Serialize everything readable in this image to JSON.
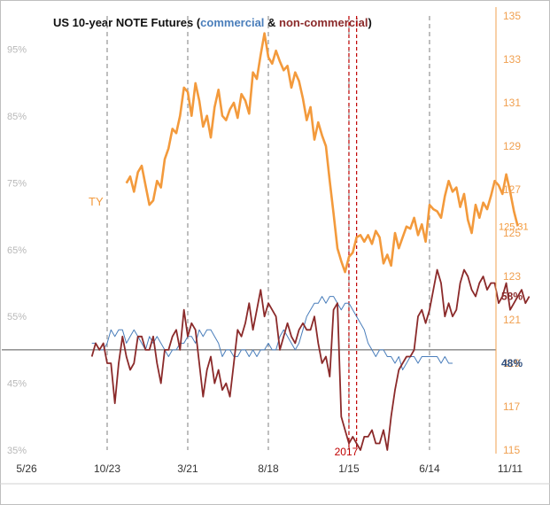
{
  "colors": {
    "ty": "#f39a3c",
    "commercial": "#4a7ebb",
    "noncommercial": "#8b2a2a",
    "year_marker": "#c00000",
    "grid_dash": "#7f7f7f",
    "baseline": "#555555",
    "left_axis": "#b8b8b8",
    "right_axis": "#f0a050",
    "frame": "#bfbfbf"
  },
  "chart_data": {
    "type": "line",
    "title": {
      "prefix": "US 10-year NOTE Futures (",
      "commercial": "commercial",
      "amp": " & ",
      "noncommercial": "non-commercial",
      "suffix": ")"
    },
    "x_ticks": [
      "5/26",
      "10/23",
      "3/21",
      "8/18",
      "1/15",
      "6/14",
      "11/11"
    ],
    "x_tick_index": [
      0,
      21,
      42,
      63,
      84,
      105,
      126
    ],
    "vline_index": [
      21,
      42,
      63,
      84,
      105
    ],
    "year_marker": {
      "label": "2017",
      "index": [
        84,
        86
      ]
    },
    "left_axis": {
      "ticks": [
        "95%",
        "85%",
        "75%",
        "65%",
        "55%",
        "45%",
        "35%"
      ],
      "values": [
        95,
        85,
        75,
        65,
        55,
        45,
        35
      ],
      "range": [
        35,
        100
      ]
    },
    "right_axis": {
      "ticks": [
        "135",
        "133",
        "131",
        "129",
        "127",
        "125",
        "123",
        "121",
        "119",
        "117",
        "115"
      ],
      "values": [
        135,
        133,
        131,
        129,
        127,
        125,
        123,
        121,
        119,
        117,
        115
      ],
      "range": [
        115,
        135
      ]
    },
    "baseline_pct": 50,
    "series": [
      {
        "name": "TY",
        "axis": "right",
        "label_value": "125.31",
        "x_start": 26,
        "values": [
          127.3,
          127.6,
          126.9,
          127.8,
          128.1,
          127.2,
          126.3,
          126.5,
          127.4,
          127.1,
          128.4,
          128.9,
          129.8,
          129.6,
          130.4,
          131.7,
          131.5,
          130.4,
          131.9,
          131.1,
          129.9,
          130.4,
          129.4,
          130.8,
          131.6,
          130.4,
          130.2,
          130.7,
          131.0,
          130.3,
          131.4,
          131.1,
          130.5,
          132.4,
          132.1,
          133.2,
          134.2,
          133.1,
          132.8,
          133.4,
          132.9,
          132.5,
          132.7,
          131.7,
          132.4,
          132.0,
          131.2,
          130.2,
          130.8,
          129.3,
          130.1,
          129.5,
          129.0,
          127.4,
          125.9,
          124.3,
          123.7,
          123.2,
          123.9,
          124.1,
          124.8,
          124.9,
          124.6,
          124.9,
          124.5,
          125.1,
          124.8,
          123.6,
          124.0,
          123.5,
          125.0,
          124.3,
          124.8,
          125.3,
          125.2,
          125.7,
          124.9,
          125.4,
          124.6,
          126.3,
          126.1,
          126.0,
          125.7,
          126.7,
          127.4,
          126.9,
          127.1,
          126.2,
          126.8,
          125.6,
          125.0,
          126.3,
          125.7,
          126.4,
          126.1,
          126.7,
          127.4,
          127.2,
          126.8,
          127.7,
          126.9,
          126.0,
          125.31
        ]
      },
      {
        "name": "commercial",
        "axis": "left",
        "label_value": "48%",
        "x_start": 17,
        "values": [
          51,
          51,
          50,
          50,
          51,
          53,
          52,
          53,
          53,
          51,
          52,
          53,
          52,
          51,
          50,
          52,
          51,
          52,
          51,
          50,
          49,
          50,
          50,
          51,
          51,
          52,
          52,
          51,
          53,
          52,
          53,
          53,
          52,
          51,
          49,
          50,
          50,
          49,
          49,
          50,
          50,
          49,
          50,
          49,
          50,
          50,
          51,
          50,
          50,
          52,
          53,
          52,
          51,
          50,
          51,
          53,
          55,
          56,
          57,
          57,
          58,
          57,
          58,
          58,
          57,
          56,
          57,
          57,
          56,
          55,
          54,
          53,
          51,
          50,
          49,
          50,
          50,
          49,
          49,
          48,
          49,
          47,
          48,
          49,
          49,
          48,
          49,
          49,
          49,
          49,
          49,
          48,
          49,
          48,
          48
        ]
      },
      {
        "name": "non-commercial",
        "axis": "left",
        "label_value": "58%",
        "x_start": 17,
        "values": [
          49,
          51,
          50,
          51,
          48,
          48,
          42,
          48,
          52,
          49,
          47,
          48,
          52,
          52,
          50,
          50,
          52,
          48,
          45,
          50,
          50,
          52,
          53,
          50,
          56,
          52,
          54,
          53,
          48,
          43,
          47,
          49,
          45,
          47,
          44,
          45,
          43,
          48,
          53,
          52,
          54,
          57,
          53,
          56,
          59,
          55,
          57,
          56,
          55,
          50,
          52,
          54,
          52,
          51,
          53,
          54,
          53,
          53,
          55,
          51,
          48,
          49,
          46,
          56,
          57,
          40,
          38,
          36,
          37,
          36,
          35,
          37,
          37,
          38,
          36,
          36,
          38,
          35,
          40,
          44,
          47,
          48,
          49,
          49,
          50,
          55,
          56,
          54,
          56,
          59,
          62,
          60,
          55,
          57,
          55,
          56,
          60,
          62,
          61,
          59,
          58,
          60,
          61,
          59,
          60,
          60,
          57,
          58,
          60,
          56,
          57,
          58,
          59,
          57,
          58
        ]
      }
    ],
    "annotations": [
      "TY",
      "2017"
    ],
    "grid": false,
    "legend": "title"
  }
}
